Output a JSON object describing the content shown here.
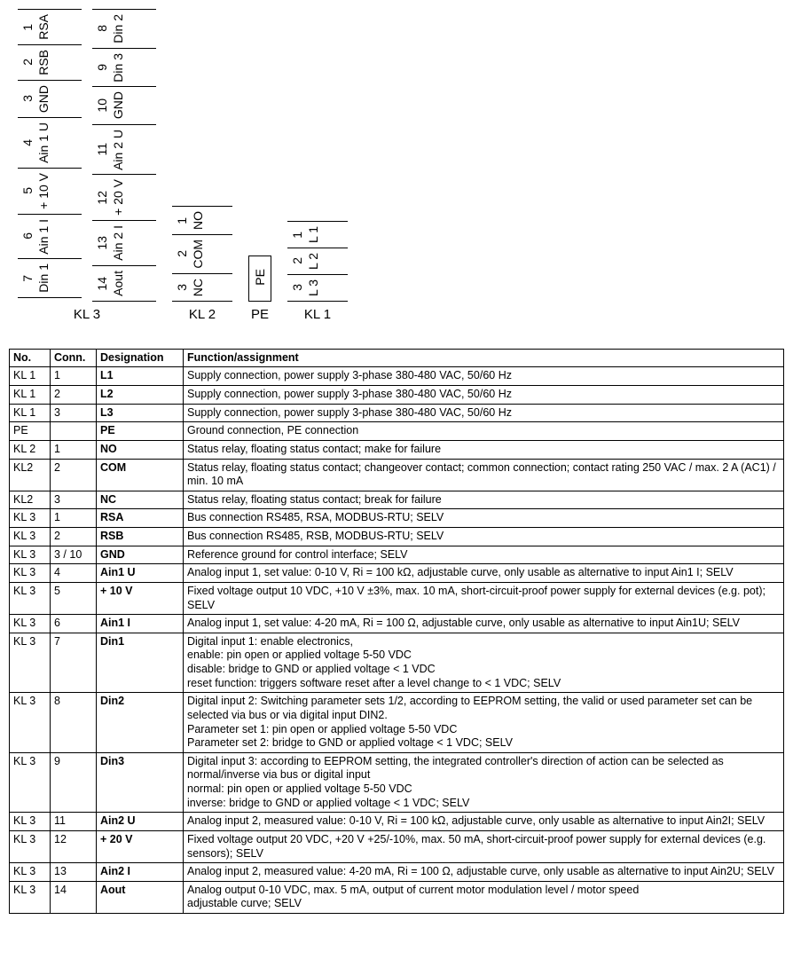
{
  "terminals": {
    "kl3": {
      "label": "KL 3",
      "colA": [
        {
          "n": "1",
          "l": "RSA"
        },
        {
          "n": "2",
          "l": "RSB"
        },
        {
          "n": "3",
          "l": "GND"
        },
        {
          "n": "4",
          "l": "Ain 1 U"
        },
        {
          "n": "5",
          "l": "+ 10 V"
        },
        {
          "n": "6",
          "l": "Ain 1 I"
        },
        {
          "n": "7",
          "l": "Din 1"
        }
      ],
      "colB": [
        {
          "n": "8",
          "l": "Din 2"
        },
        {
          "n": "9",
          "l": "Din 3"
        },
        {
          "n": "10",
          "l": "GND"
        },
        {
          "n": "11",
          "l": "Ain 2 U"
        },
        {
          "n": "12",
          "l": "+ 20 V"
        },
        {
          "n": "13",
          "l": "Ain 2 I"
        },
        {
          "n": "14",
          "l": "Aout"
        }
      ]
    },
    "kl2": {
      "label": "KL 2",
      "rows": [
        {
          "n": "1",
          "l": "NO"
        },
        {
          "n": "2",
          "l": "COM"
        },
        {
          "n": "3",
          "l": "NC"
        }
      ]
    },
    "pe": {
      "label": "PE",
      "l": "PE"
    },
    "kl1": {
      "label": "KL 1",
      "rows": [
        {
          "n": "1",
          "l": "L 1"
        },
        {
          "n": "2",
          "l": "L 2"
        },
        {
          "n": "3",
          "l": "L 3"
        }
      ]
    }
  },
  "table": {
    "headers": {
      "no": "No.",
      "conn": "Conn.",
      "desig": "Designation",
      "func": "Function/assignment"
    },
    "rows": [
      {
        "no": "KL 1",
        "conn": "1",
        "desig": "L1",
        "func": "Supply connection, power supply 3-phase 380-480 VAC, 50/60 Hz"
      },
      {
        "no": "KL 1",
        "conn": "2",
        "desig": "L2",
        "func": "Supply connection, power supply 3-phase 380-480 VAC, 50/60 Hz"
      },
      {
        "no": "KL 1",
        "conn": "3",
        "desig": "L3",
        "func": "Supply connection, power supply 3-phase 380-480 VAC, 50/60 Hz"
      },
      {
        "no": "PE",
        "conn": "",
        "desig": "PE",
        "func": "Ground connection, PE connection"
      },
      {
        "no": "KL 2",
        "conn": "1",
        "desig": "NO",
        "func": "Status relay, floating status contact; make for failure"
      },
      {
        "no": "KL2",
        "conn": "2",
        "desig": "COM",
        "func": "Status relay, floating status contact; changeover contact; common connection; contact rating 250 VAC / max. 2 A (AC1) / min. 10 mA"
      },
      {
        "no": "KL2",
        "conn": "3",
        "desig": "NC",
        "func": "Status relay, floating status contact; break for failure"
      },
      {
        "no": "KL 3",
        "conn": "1",
        "desig": "RSA",
        "func": "Bus connection RS485, RSA, MODBUS-RTU; SELV"
      },
      {
        "no": "KL 3",
        "conn": "2",
        "desig": "RSB",
        "func": "Bus connection RS485, RSB, MODBUS-RTU; SELV"
      },
      {
        "no": "KL 3",
        "conn": "3 / 10",
        "desig": "GND",
        "func": "Reference ground for control interface; SELV"
      },
      {
        "no": "KL 3",
        "conn": "4",
        "desig": "Ain1 U",
        "func": "Analog input 1, set value: 0-10 V, Ri = 100 kΩ, adjustable curve, only usable as alternative to input Ain1 I; SELV"
      },
      {
        "no": "KL 3",
        "conn": "5",
        "desig": "+ 10 V",
        "func": "Fixed voltage output 10 VDC, +10 V ±3%, max. 10 mA, short-circuit-proof power supply for external devices (e.g. pot); SELV"
      },
      {
        "no": "KL 3",
        "conn": "6",
        "desig": "Ain1 I",
        "func": "Analog input 1, set value: 4-20 mA, Ri = 100 Ω, adjustable curve, only usable as alternative to input Ain1U; SELV"
      },
      {
        "no": "KL 3",
        "conn": "7",
        "desig": "Din1",
        "func": "Digital input 1: enable electronics,\nenable: pin open or applied voltage 5-50 VDC\ndisable: bridge to GND or applied voltage < 1 VDC\nreset function: triggers software reset after a level change to < 1 VDC; SELV"
      },
      {
        "no": "KL 3",
        "conn": "8",
        "desig": "Din2",
        "func": "Digital input 2: Switching parameter sets 1/2, according to EEPROM setting, the valid or used parameter set can be selected via bus or via digital input DIN2.\nParameter set 1: pin open or applied voltage 5-50 VDC\nParameter set 2: bridge to GND or applied voltage < 1 VDC; SELV"
      },
      {
        "no": "KL 3",
        "conn": "9",
        "desig": "Din3",
        "func": "Digital input 3: according to EEPROM setting, the integrated controller's direction of action can be selected as normal/inverse via bus or digital input\nnormal: pin open or applied voltage 5-50 VDC\ninverse: bridge to GND or applied voltage < 1 VDC; SELV"
      },
      {
        "no": "KL 3",
        "conn": "11",
        "desig": "Ain2 U",
        "func": "Analog input 2, measured value: 0-10 V, Ri = 100 kΩ, adjustable curve, only usable as alternative to input Ain2I; SELV"
      },
      {
        "no": "KL 3",
        "conn": "12",
        "desig": "+ 20 V",
        "func": "Fixed voltage output 20 VDC, +20 V +25/-10%, max. 50 mA, short-circuit-proof power supply for external devices (e.g. sensors); SELV"
      },
      {
        "no": "KL 3",
        "conn": "13",
        "desig": "Ain2 I",
        "func": "Analog input 2, measured value: 4-20 mA, Ri = 100 Ω, adjustable curve, only usable as alternative to input Ain2U; SELV"
      },
      {
        "no": "KL 3",
        "conn": "14",
        "desig": "Aout",
        "func": "Analog output 0-10 VDC, max. 5 mA, output of current motor modulation level / motor speed\nadjustable curve; SELV"
      }
    ]
  }
}
